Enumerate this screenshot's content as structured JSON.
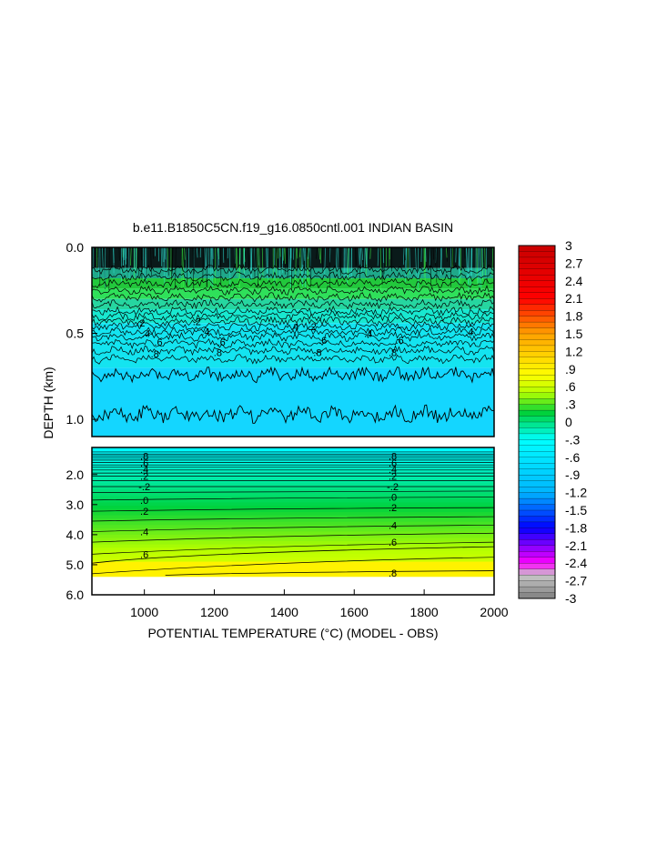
{
  "chart_data": {
    "type": "heatmap",
    "title": "b.e11.B1850C5CN.f19_g16.0850cntl.001 INDIAN BASIN",
    "xlabel": "POTENTIAL TEMPERATURE (°C) (MODEL - OBS)",
    "ylabel": "DEPTH (km)",
    "xlim": [
      850,
      2000
    ],
    "x_ticks": [
      "1000",
      "1200",
      "1400",
      "1600",
      "1800",
      "2000"
    ],
    "x_tick_values": [
      1000,
      1200,
      1400,
      1600,
      1800,
      2000
    ],
    "upper_panel": {
      "ylim": [
        0.0,
        1.1
      ],
      "y_ticks": [
        "0.0",
        "0.5",
        "1.0"
      ],
      "y_tick_values": [
        0.0,
        0.5,
        1.0
      ],
      "contour_labels": [
        ".2",
        ".4",
        ".6",
        ".8"
      ],
      "contour_label_positions": [
        {
          "text": ".2",
          "x": 990,
          "depth": 0.44
        },
        {
          "text": ".4",
          "x": 1005,
          "depth": 0.5
        },
        {
          "text": ".6",
          "x": 1040,
          "depth": 0.55
        },
        {
          "text": ".8",
          "x": 1030,
          "depth": 0.62
        },
        {
          "text": ".2",
          "x": 1150,
          "depth": 0.43
        },
        {
          "text": ".4",
          "x": 1175,
          "depth": 0.49
        },
        {
          "text": ".6",
          "x": 1220,
          "depth": 0.55
        },
        {
          "text": ".8",
          "x": 1210,
          "depth": 0.61
        },
        {
          "text": ".2",
          "x": 1480,
          "depth": 0.46
        },
        {
          "text": ".4",
          "x": 1430,
          "depth": 0.46
        },
        {
          "text": ".6",
          "x": 1510,
          "depth": 0.54
        },
        {
          "text": ".8",
          "x": 1495,
          "depth": 0.61
        },
        {
          "text": ".4",
          "x": 1640,
          "depth": 0.5
        },
        {
          "text": ".6",
          "x": 1730,
          "depth": 0.54
        },
        {
          "text": ".8",
          "x": 1710,
          "depth": 0.61
        },
        {
          "text": ".4",
          "x": 1930,
          "depth": 0.49
        }
      ]
    },
    "lower_panel": {
      "ylim": [
        1.1,
        6.0
      ],
      "y_ticks": [
        "2.0",
        "3.0",
        "4.0",
        "5.0",
        "6.0"
      ],
      "y_tick_values": [
        2.0,
        3.0,
        4.0,
        5.0,
        6.0
      ],
      "contour_labels": [
        {
          "text": ".8",
          "x": 1000,
          "depth": 1.38
        },
        {
          "text": ".6",
          "x": 1000,
          "depth": 1.62
        },
        {
          "text": ".4",
          "x": 1000,
          "depth": 1.82
        },
        {
          "text": ".2",
          "x": 1000,
          "depth": 2.05
        },
        {
          "text": "-.2",
          "x": 1000,
          "depth": 2.4
        },
        {
          "text": ".0",
          "x": 1000,
          "depth": 2.85
        },
        {
          "text": ".2",
          "x": 1000,
          "depth": 3.22
        },
        {
          "text": ".4",
          "x": 1000,
          "depth": 3.9
        },
        {
          "text": ".6",
          "x": 1000,
          "depth": 4.65
        },
        {
          "text": ".8",
          "x": 1710,
          "depth": 1.38
        },
        {
          "text": ".6",
          "x": 1710,
          "depth": 1.62
        },
        {
          "text": ".4",
          "x": 1710,
          "depth": 1.82
        },
        {
          "text": ".2",
          "x": 1710,
          "depth": 2.05
        },
        {
          "text": "-.2",
          "x": 1710,
          "depth": 2.4
        },
        {
          "text": ".0",
          "x": 1710,
          "depth": 2.75
        },
        {
          "text": ".2",
          "x": 1710,
          "depth": 3.1
        },
        {
          "text": ".4",
          "x": 1710,
          "depth": 3.68
        },
        {
          "text": ".6",
          "x": 1710,
          "depth": 4.25
        },
        {
          "text": ".8",
          "x": 1710,
          "depth": 5.27
        }
      ]
    },
    "colorbar": {
      "range": [
        -3,
        3
      ],
      "labels": [
        "3",
        "2.7",
        "2.4",
        "2.1",
        "1.8",
        "1.5",
        "1.2",
        ".9",
        ".6",
        ".3",
        "0",
        "-.3",
        "-.6",
        "-.9",
        "-1.2",
        "-1.5",
        "-1.8",
        "-2.1",
        "-2.4",
        "-2.7",
        "-3"
      ],
      "label_values": [
        3,
        2.7,
        2.4,
        2.1,
        1.8,
        1.5,
        1.2,
        0.9,
        0.6,
        0.3,
        0,
        -0.3,
        -0.6,
        -0.9,
        -1.2,
        -1.5,
        -1.8,
        -2.1,
        -2.4,
        -2.7,
        -3
      ],
      "colors": {
        "gray": "#808080",
        "light_gray": "#c8c8c8",
        "magenta": "#ff00ff",
        "blue": "#0000ff",
        "sky": "#00b4ff",
        "cyan": "#00ffff",
        "green": "#00d23c",
        "yellow_green": "#b4ff00",
        "yellow": "#ffff00",
        "orange": "#ffa000",
        "red": "#ff0000",
        "dark_red": "#c80000"
      }
    }
  }
}
